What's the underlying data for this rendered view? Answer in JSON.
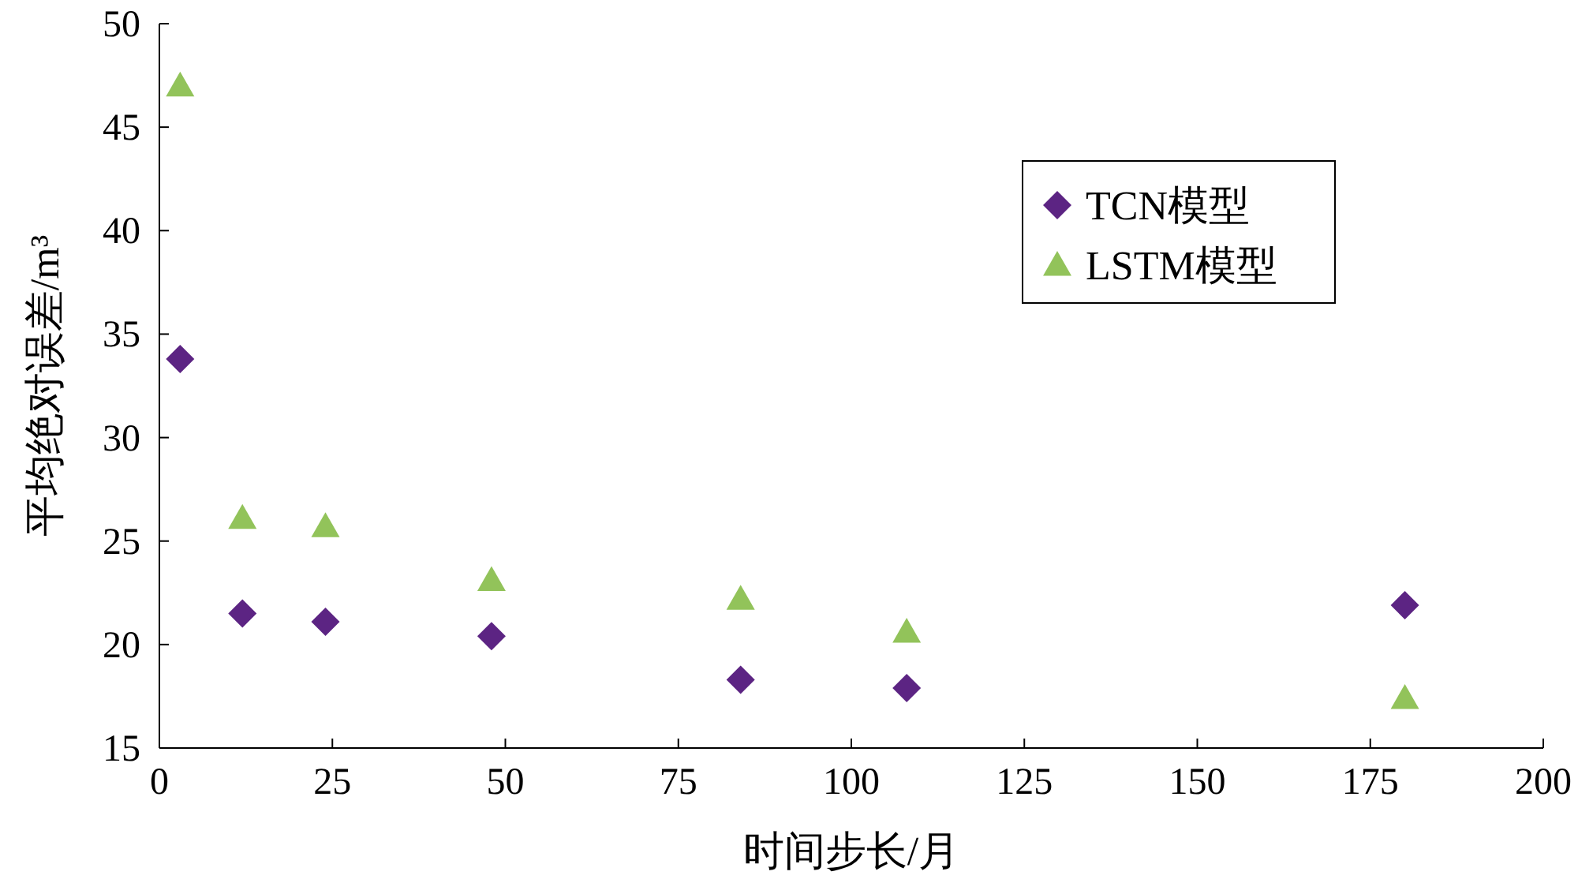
{
  "chart_data": {
    "type": "scatter",
    "xlabel": "时间步长/月",
    "ylabel": "平均绝对误差/m³",
    "x": [
      3,
      12,
      24,
      48,
      84,
      108,
      180
    ],
    "series": [
      {
        "name": "TCN模型",
        "color": "#5c2483",
        "marker": "diamond",
        "values": [
          33.8,
          21.5,
          21.1,
          20.4,
          18.3,
          17.9,
          21.9
        ]
      },
      {
        "name": "LSTM模型",
        "color": "#92c35a",
        "marker": "triangle",
        "values": [
          47.0,
          26.1,
          25.7,
          23.1,
          22.2,
          20.6,
          17.4
        ]
      }
    ],
    "xlim": [
      0,
      200
    ],
    "xticks": [
      0,
      25,
      50,
      75,
      100,
      125,
      150,
      175,
      200
    ],
    "ylim": [
      15,
      50
    ],
    "yticks": [
      15,
      20,
      25,
      30,
      35,
      40,
      45,
      50
    ],
    "grid": false,
    "legend": "top right"
  }
}
